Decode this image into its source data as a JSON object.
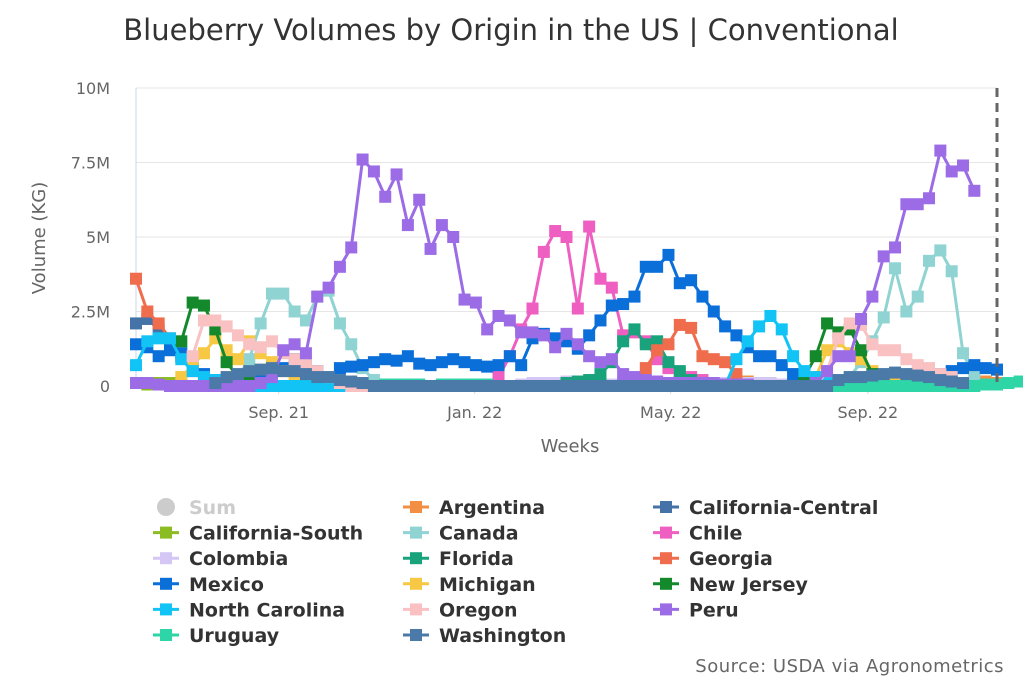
{
  "chart_data": {
    "type": "line",
    "title": "Blueberry Volumes by Origin in the US | Conventional",
    "xlabel": "Weeks",
    "ylabel": "Volume (KG)",
    "ylim": [
      0,
      10000000
    ],
    "yticks": [
      {
        "value": 0,
        "label": "0"
      },
      {
        "value": 2500000,
        "label": "2.5M"
      },
      {
        "value": 5000000,
        "label": "5M"
      },
      {
        "value": 7500000,
        "label": "7.5M"
      },
      {
        "value": 10000000,
        "label": "10M"
      }
    ],
    "xrange": [
      0,
      76
    ],
    "xticks": [
      {
        "week": 12.6,
        "label": "Sep. 21"
      },
      {
        "week": 29.9,
        "label": "Jan. 22"
      },
      {
        "week": 47.2,
        "label": "May. 22"
      },
      {
        "week": 64.6,
        "label": "Sep. 22"
      }
    ],
    "current_week_marker": 76,
    "credit": "Source: USDA via Agronometrics",
    "legend_off_name": "Sum",
    "series": [
      {
        "name": "Argentina",
        "color": "#f28f43",
        "start": 53,
        "values": [
          0.1,
          0.15,
          0.1,
          0.1,
          0.05,
          0,
          0,
          0,
          0,
          0,
          0,
          0,
          0,
          0,
          0,
          0,
          0,
          0,
          0,
          0,
          0.05,
          0.1,
          0.15,
          0.1
        ]
      },
      {
        "name": "California-Central",
        "color": "#4572a7",
        "start": 0,
        "values": [
          2.1,
          2.25,
          1.9,
          1.5,
          1.0,
          0.6,
          0.3,
          0.1,
          0,
          0,
          0,
          0,
          0,
          0,
          0,
          0
        ]
      },
      {
        "name": "California-South",
        "color": "#8bbc21",
        "start": 1,
        "values": [
          0.05,
          0.1,
          0.1,
          0.05,
          0,
          0,
          0,
          0,
          0,
          0,
          0,
          0,
          0,
          0,
          0,
          0,
          0,
          0,
          0,
          0,
          0,
          0,
          0,
          0,
          0,
          0,
          0,
          0,
          0,
          0,
          0,
          0,
          0,
          0,
          0,
          0,
          0,
          0,
          0,
          0,
          0,
          0,
          0,
          0,
          0,
          0,
          0,
          0,
          0,
          0,
          0.05,
          0.1,
          0.1,
          0.1,
          0.1,
          0.05,
          0.05,
          0.1,
          0.1,
          0.1
        ]
      },
      {
        "name": "Canada",
        "color": "#8fd3d2",
        "start": 9,
        "values": [
          0.3,
          0.9,
          2.1,
          3.1,
          3.1,
          2.5,
          2.2,
          3.0,
          3.2,
          2.1,
          1.4,
          0.6,
          0.2,
          0,
          0,
          0,
          0,
          0,
          0,
          0,
          0,
          0,
          0,
          0,
          0,
          0,
          0,
          0,
          0,
          0,
          0,
          0,
          0,
          0,
          0,
          0,
          0,
          0,
          0,
          0,
          0,
          0,
          0,
          0,
          0,
          0,
          0,
          0,
          0,
          0,
          0,
          0,
          0,
          0,
          0.3,
          0.8,
          1.5,
          2.3,
          3.95,
          2.5,
          3.0,
          4.2,
          4.55,
          3.85,
          1.1,
          0.3
        ]
      },
      {
        "name": "Chile",
        "color": "#ee5fc1",
        "start": 32,
        "values": [
          0.3,
          1.0,
          1.9,
          2.6,
          4.5,
          5.2,
          5.0,
          2.6,
          5.35,
          3.6,
          3.3,
          1.7,
          1.8,
          1.5,
          0.9,
          0.6,
          0.4,
          0.3,
          0.2,
          0.1,
          0,
          0
        ]
      },
      {
        "name": "Colombia",
        "color": "#d4c7f6",
        "start": 34,
        "values": [
          0.05,
          0.1,
          0.1,
          0.1,
          0.15,
          0.1,
          0.1,
          0.1,
          0.05,
          0.1,
          0.1,
          0.1,
          0.15,
          0.1,
          0.1,
          0.05,
          0.1,
          0.1,
          0.1,
          0.05,
          0.1,
          0.1,
          0.1,
          0.05,
          0.1,
          0.1,
          0.05,
          0.1,
          0.1,
          0.05
        ]
      },
      {
        "name": "Florida",
        "color": "#19a37d",
        "start": 38,
        "values": [
          0.1,
          0.15,
          0.2,
          0.4,
          0.8,
          1.5,
          1.9,
          1.4,
          1.5,
          0.8,
          0.5,
          0.2,
          0.1,
          0
        ]
      },
      {
        "name": "Georgia",
        "color": "#ef6c4d",
        "start": 0,
        "values": [
          3.6,
          2.5,
          2.1,
          1.6,
          1.0,
          0.5,
          0.2,
          0,
          0,
          0,
          0,
          0,
          0,
          0,
          0,
          0,
          0,
          0,
          0,
          0,
          0,
          0,
          0,
          0,
          0,
          0,
          0,
          0,
          0,
          0,
          0,
          0,
          0,
          0,
          0,
          0,
          0,
          0,
          0,
          0,
          0,
          0,
          0,
          0,
          0,
          0.6,
          1.2,
          1.4,
          2.05,
          1.95,
          1.0,
          0.9,
          0.8,
          0.4
        ]
      },
      {
        "name": "Mexico",
        "color": "#0a6fd9",
        "start": 0,
        "values": [
          1.4,
          1.3,
          1.0,
          1.2,
          1.1,
          0.7,
          0.4,
          0.2,
          0.1,
          0.1,
          0.2,
          0.3,
          0.5,
          0.6,
          0.9,
          0.7,
          0.5,
          0.3,
          0.6,
          0.65,
          0.7,
          0.8,
          0.9,
          0.85,
          1.0,
          0.75,
          0.7,
          0.8,
          0.9,
          0.8,
          0.7,
          0.65,
          0.7,
          1.0,
          0.7,
          1.6,
          1.75,
          1.6,
          1.5,
          1.25,
          1.7,
          2.2,
          2.7,
          2.75,
          3.0,
          4.0,
          4.0,
          4.4,
          3.45,
          3.55,
          3.0,
          2.5,
          2.0,
          1.7,
          1.3,
          1.0,
          1.0,
          0.7,
          0.4,
          0.3,
          0.2,
          0.15,
          0.1,
          0.1,
          0.1,
          0.1,
          0.1,
          0.1,
          0.1,
          0.2,
          0.3,
          0.4,
          0.5,
          0.6,
          0.7,
          0.6,
          0.55
        ]
      },
      {
        "name": "Michigan",
        "color": "#f7c843",
        "start": 4,
        "values": [
          0.3,
          0.7,
          1.1,
          1.6,
          1.2,
          0.9,
          1.5,
          1.1,
          0.8,
          0.5,
          0.3,
          0.1,
          0,
          0,
          0,
          0,
          0,
          0,
          0,
          0,
          0,
          0,
          0,
          0,
          0,
          0,
          0,
          0,
          0,
          0,
          0,
          0,
          0,
          0,
          0,
          0,
          0,
          0,
          0,
          0,
          0,
          0,
          0,
          0,
          0,
          0,
          0,
          0,
          0,
          0,
          0,
          0,
          0,
          0,
          0,
          0,
          0.3,
          1.2,
          1.5,
          1.1,
          0.9,
          0.5,
          0.3,
          0.1
        ]
      },
      {
        "name": "New Jersey",
        "color": "#14892c",
        "start": 4,
        "values": [
          1.5,
          2.8,
          2.7,
          1.9,
          0.8,
          0.3,
          0.1,
          0,
          0,
          0,
          0,
          0,
          0,
          0,
          0,
          0,
          0,
          0,
          0,
          0,
          0,
          0,
          0,
          0,
          0,
          0,
          0,
          0,
          0,
          0,
          0,
          0,
          0,
          0,
          0,
          0,
          0,
          0,
          0,
          0,
          0,
          0,
          0,
          0,
          0,
          0,
          0,
          0,
          0,
          0,
          0,
          0,
          0,
          0,
          0,
          0.3,
          1.0,
          2.1,
          1.8,
          1.9,
          1.2,
          0.4
        ]
      },
      {
        "name": "North Carolina",
        "color": "#12c4f5",
        "start": 0,
        "values": [
          0.7,
          1.5,
          1.6,
          1.6,
          0.9,
          0.5,
          0.3,
          0.2,
          0.1,
          0,
          0,
          0,
          0,
          0,
          0,
          0,
          0,
          0,
          0,
          0,
          0,
          0,
          0,
          0,
          0,
          0,
          0,
          0,
          0,
          0,
          0,
          0,
          0,
          0,
          0,
          0,
          0,
          0,
          0,
          0,
          0,
          0,
          0,
          0,
          0,
          0,
          0,
          0,
          0,
          0,
          0,
          0,
          0,
          0.9,
          1.5,
          2.0,
          2.35,
          1.9,
          1.0,
          0.5,
          0.3,
          0.2
        ]
      },
      {
        "name": "Oregon",
        "color": "#f9c1c1",
        "start": 5,
        "values": [
          1.0,
          2.2,
          2.2,
          2.0,
          1.7,
          1.4,
          1.3,
          1.5,
          1.1,
          0.9,
          0.7,
          0.5,
          0.3,
          0.1,
          0,
          0,
          0,
          0,
          0,
          0,
          0,
          0,
          0,
          0,
          0,
          0,
          0,
          0,
          0,
          0,
          0,
          0,
          0,
          0,
          0,
          0,
          0,
          0,
          0,
          0,
          0,
          0,
          0,
          0,
          0,
          0,
          0,
          0,
          0,
          0,
          0,
          0,
          0,
          0,
          0,
          0,
          0.5,
          1.6,
          2.1,
          2.05,
          1.4,
          1.2,
          1.2,
          0.9,
          0.7,
          0.6,
          0.4,
          0.3
        ]
      },
      {
        "name": "Peru",
        "color": "#9b6ce6",
        "start": 0,
        "values": [
          0.1,
          0.1,
          0.05,
          0,
          0,
          0,
          0,
          0,
          0,
          0,
          0,
          0.1,
          0.3,
          1.2,
          1.4,
          1.1,
          3.0,
          3.3,
          4.0,
          4.65,
          7.6,
          7.2,
          6.35,
          7.1,
          5.4,
          6.25,
          4.6,
          5.4,
          5.0,
          2.9,
          2.8,
          1.9,
          2.35,
          2.2,
          1.8,
          1.8,
          1.7,
          1.3,
          1.75,
          1.4,
          1.0,
          0.8,
          0.9,
          0.4,
          0.3,
          0.2,
          0.15,
          0.1,
          0.1,
          0.1,
          0.1,
          0.1,
          0.05,
          0.05,
          0.05,
          0,
          0,
          0,
          0,
          0,
          0.1,
          0.5,
          1.0,
          1.0,
          2.25,
          3.0,
          4.35,
          4.65,
          6.1,
          6.1,
          6.3,
          7.9,
          7.2,
          7.4,
          6.55
        ]
      },
      {
        "name": "Uruguay",
        "color": "#2ed5a7",
        "start": 22,
        "values": [
          0.05,
          0.05,
          0.05,
          0.05,
          0,
          0.05,
          0.05,
          0.05,
          0.05,
          0.05,
          0,
          0,
          0,
          0,
          0,
          0,
          0,
          0,
          0,
          0,
          0,
          0,
          0,
          0,
          0,
          0,
          0,
          0,
          0,
          0,
          0,
          0,
          0,
          0,
          0,
          0,
          0,
          0,
          0,
          0,
          0,
          0,
          0,
          0,
          0,
          0,
          0,
          0,
          0,
          0,
          0,
          0,
          0,
          0.05,
          0.05,
          0.1,
          0.15,
          0.15,
          0.1
        ]
      },
      {
        "name": "Washington",
        "color": "#4b7aa8",
        "start": 7,
        "values": [
          0.1,
          0.3,
          0.4,
          0.5,
          0.55,
          0.6,
          0.5,
          0.5,
          0.4,
          0.3,
          0.3,
          0.2,
          0.15,
          0.1,
          0,
          0,
          0,
          0,
          0,
          0,
          0,
          0,
          0,
          0,
          0,
          0,
          0,
          0,
          0,
          0,
          0,
          0,
          0,
          0,
          0,
          0,
          0,
          0,
          0,
          0,
          0,
          0,
          0,
          0,
          0,
          0,
          0,
          0,
          0,
          0,
          0,
          0,
          0,
          0,
          0,
          0.2,
          0.3,
          0.3,
          0.35,
          0.4,
          0.45,
          0.4,
          0.35,
          0.3,
          0.2,
          0.15,
          0.1
        ]
      }
    ]
  }
}
